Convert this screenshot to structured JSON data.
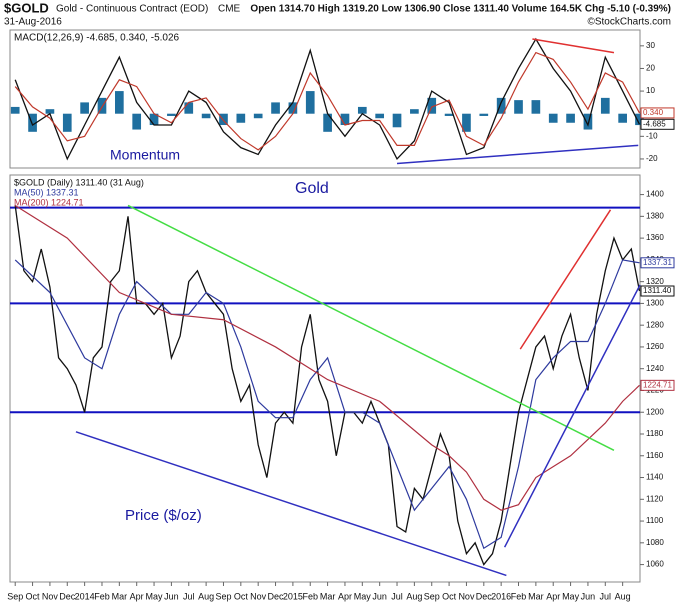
{
  "header": {
    "symbol": "$GOLD",
    "name": "Gold - Continuous Contract (EOD)",
    "exchange": "CME",
    "date": "31-Aug-2016",
    "quote": "Open 1314.70 High 1319.20 Low 1306.90 Close 1311.40 Volume 164.5K Chg -5.10 (-0.39%)",
    "credit": "©StockCharts.com"
  },
  "chart_data": [
    {
      "type": "line",
      "legend": "MACD(12,26,9) -4.685, 0.340, -5.026",
      "annotation": "Momentum",
      "xlim": [
        -0.3,
        36
      ],
      "ylim": [
        -24,
        37
      ],
      "yticks": [
        -20,
        -10,
        0,
        10,
        20,
        30
      ],
      "x": [
        0,
        1,
        2,
        3,
        4,
        5,
        6,
        7,
        8,
        9,
        10,
        11,
        12,
        13,
        14,
        15,
        16,
        17,
        18,
        19,
        20,
        21,
        22,
        23,
        24,
        25,
        26,
        27,
        28,
        29,
        30,
        31,
        32,
        33,
        34,
        35,
        35.97
      ],
      "series": [
        {
          "color": "#111111",
          "values": [
            15,
            -5,
            0,
            -20,
            -5,
            10,
            25,
            5,
            -5,
            -5,
            10,
            5,
            -8,
            -15,
            -18,
            -5,
            5,
            28,
            0,
            -10,
            0,
            -5,
            -20,
            -12,
            10,
            5,
            -18,
            -15,
            5,
            20,
            33,
            20,
            10,
            -5,
            25,
            10,
            -4.685
          ],
          "last_label": "-4.685"
        },
        {
          "color": "#c0392b",
          "values": [
            12,
            3,
            -2,
            -12,
            -10,
            3,
            15,
            12,
            0,
            -4,
            5,
            7,
            -3,
            -11,
            -16,
            -10,
            0,
            18,
            8,
            -5,
            -3,
            -3,
            -14,
            -14,
            3,
            6,
            -10,
            -14,
            -2,
            14,
            27,
            24,
            14,
            2,
            18,
            14,
            0.34
          ],
          "last_label": "0.340"
        }
      ],
      "histogram": {
        "color": "#1f6f9f",
        "values": [
          3,
          -8,
          2,
          -8,
          5,
          7,
          10,
          -7,
          -5,
          -1,
          5,
          -2,
          -5,
          -4,
          -2,
          5,
          5,
          10,
          -8,
          -5,
          3,
          -2,
          -6,
          2,
          7,
          -1,
          -8,
          -1,
          7,
          6,
          6,
          -4,
          -4,
          -7,
          7,
          -4,
          -5.026
        ]
      },
      "trendlines": [
        {
          "color": "#e03030",
          "x": [
            29.8,
            34.5
          ],
          "y": [
            33,
            27
          ]
        },
        {
          "color": "#3030c0",
          "x": [
            22,
            35.9
          ],
          "y": [
            -22,
            -14
          ]
        }
      ]
    },
    {
      "type": "line",
      "title": "Gold",
      "annotation": "Price ($/oz)",
      "xlim": [
        -0.3,
        36
      ],
      "ylim": [
        1044,
        1418
      ],
      "yticks": [
        1060,
        1080,
        1100,
        1120,
        1140,
        1160,
        1180,
        1200,
        1220,
        1240,
        1260,
        1280,
        1300,
        1320,
        1340,
        1360,
        1380,
        1400
      ],
      "xticks": [
        {
          "value": 0,
          "label": "Sep"
        },
        {
          "value": 1,
          "label": "Oct"
        },
        {
          "value": 2,
          "label": "Nov"
        },
        {
          "value": 3,
          "label": "Dec"
        },
        {
          "value": 4,
          "label": "2014"
        },
        {
          "value": 5,
          "label": "Feb"
        },
        {
          "value": 6,
          "label": "Mar"
        },
        {
          "value": 7,
          "label": "Apr"
        },
        {
          "value": 8,
          "label": "May"
        },
        {
          "value": 9,
          "label": "Jun"
        },
        {
          "value": 10,
          "label": "Jul"
        },
        {
          "value": 11,
          "label": "Aug"
        },
        {
          "value": 12,
          "label": "Sep"
        },
        {
          "value": 13,
          "label": "Oct"
        },
        {
          "value": 14,
          "label": "Nov"
        },
        {
          "value": 15,
          "label": "Dec"
        },
        {
          "value": 16,
          "label": "2015"
        },
        {
          "value": 17,
          "label": "Feb"
        },
        {
          "value": 18,
          "label": "Mar"
        },
        {
          "value": 19,
          "label": "Apr"
        },
        {
          "value": 20,
          "label": "May"
        },
        {
          "value": 21,
          "label": "Jun"
        },
        {
          "value": 22,
          "label": "Jul"
        },
        {
          "value": 23,
          "label": "Aug"
        },
        {
          "value": 24,
          "label": "Sep"
        },
        {
          "value": 25,
          "label": "Oct"
        },
        {
          "value": 26,
          "label": "Nov"
        },
        {
          "value": 27,
          "label": "Dec"
        },
        {
          "value": 28,
          "label": "2016"
        },
        {
          "value": 29,
          "label": "Feb"
        },
        {
          "value": 30,
          "label": "Mar"
        },
        {
          "value": 31,
          "label": "Apr"
        },
        {
          "value": 32,
          "label": "May"
        },
        {
          "value": 33,
          "label": "Jun"
        },
        {
          "value": 34,
          "label": "Jul"
        },
        {
          "value": 35,
          "label": "Aug"
        }
      ],
      "series": [
        {
          "name": "$GOLD (Daily) 1311.40 (31 Aug)",
          "color": "#111111",
          "last_label": "1311.40",
          "x": [
            0,
            0.5,
            1,
            1.5,
            2,
            2.5,
            3,
            3.5,
            4,
            4.5,
            5,
            5.5,
            6,
            6.5,
            7,
            7.5,
            8,
            8.5,
            9,
            9.5,
            10,
            10.5,
            11,
            11.5,
            12,
            12.5,
            13,
            13.5,
            14,
            14.5,
            15,
            15.5,
            16,
            16.5,
            17,
            17.5,
            18,
            18.5,
            19,
            19.5,
            20,
            20.5,
            21,
            21.5,
            22,
            22.5,
            23,
            23.5,
            24,
            24.5,
            25,
            25.5,
            26,
            26.5,
            27,
            27.5,
            28,
            28.5,
            29,
            29.5,
            30,
            30.5,
            31,
            31.5,
            32,
            32.5,
            33,
            33.5,
            34,
            34.5,
            35,
            35.5,
            35.97
          ],
          "values": [
            1390,
            1330,
            1320,
            1350,
            1315,
            1250,
            1240,
            1225,
            1200,
            1250,
            1260,
            1320,
            1330,
            1380,
            1300,
            1300,
            1290,
            1300,
            1250,
            1270,
            1320,
            1330,
            1310,
            1300,
            1290,
            1240,
            1210,
            1225,
            1170,
            1140,
            1190,
            1200,
            1190,
            1260,
            1290,
            1230,
            1210,
            1160,
            1200,
            1200,
            1190,
            1210,
            1190,
            1170,
            1095,
            1090,
            1130,
            1120,
            1150,
            1180,
            1160,
            1100,
            1070,
            1080,
            1060,
            1070,
            1100,
            1150,
            1200,
            1230,
            1260,
            1270,
            1240,
            1270,
            1290,
            1250,
            1220,
            1290,
            1330,
            1360,
            1340,
            1350,
            1311.4
          ]
        },
        {
          "name": "MA(50) 1337.31",
          "color": "#2e3a9e",
          "last_label": "1337.31",
          "x": [
            0,
            2,
            4,
            5,
            6,
            7,
            8,
            9,
            10,
            11,
            12,
            13,
            14,
            15,
            16,
            17,
            18,
            19,
            20,
            21,
            22,
            23,
            24,
            25,
            26,
            27,
            28,
            29,
            30,
            31,
            32,
            33,
            34,
            35,
            35.97
          ],
          "values": [
            1340,
            1310,
            1250,
            1240,
            1290,
            1320,
            1305,
            1290,
            1290,
            1310,
            1300,
            1260,
            1210,
            1195,
            1195,
            1230,
            1250,
            1200,
            1200,
            1190,
            1150,
            1110,
            1130,
            1150,
            1120,
            1075,
            1085,
            1150,
            1230,
            1250,
            1265,
            1265,
            1300,
            1340,
            1337.31
          ]
        },
        {
          "name": "MA(200) 1224.71",
          "color": "#b03040",
          "last_label": "1224.71",
          "x": [
            0,
            3,
            6,
            9,
            12,
            15,
            18,
            21,
            24,
            25,
            26,
            27,
            28,
            29,
            30,
            31,
            32,
            33,
            34,
            35,
            35.97
          ],
          "values": [
            1390,
            1360,
            1310,
            1290,
            1285,
            1260,
            1230,
            1210,
            1170,
            1160,
            1145,
            1120,
            1110,
            1115,
            1140,
            1150,
            1160,
            1175,
            1190,
            1210,
            1224.71
          ]
        }
      ],
      "hlines": {
        "color": "#1010c0",
        "values": [
          1388,
          1300,
          1200
        ]
      },
      "trendlines": [
        {
          "color": "#44dd44",
          "x": [
            6.5,
            34.5
          ],
          "y": [
            1390,
            1165
          ]
        },
        {
          "color": "#3030c0",
          "x": [
            3.5,
            28.3
          ],
          "y": [
            1182,
            1050
          ]
        },
        {
          "color": "#e03030",
          "x": [
            29.1,
            34.3
          ],
          "y": [
            1258,
            1386
          ]
        },
        {
          "color": "#3030c0",
          "x": [
            28.2,
            36
          ],
          "y": [
            1076,
            1317
          ]
        }
      ]
    }
  ]
}
